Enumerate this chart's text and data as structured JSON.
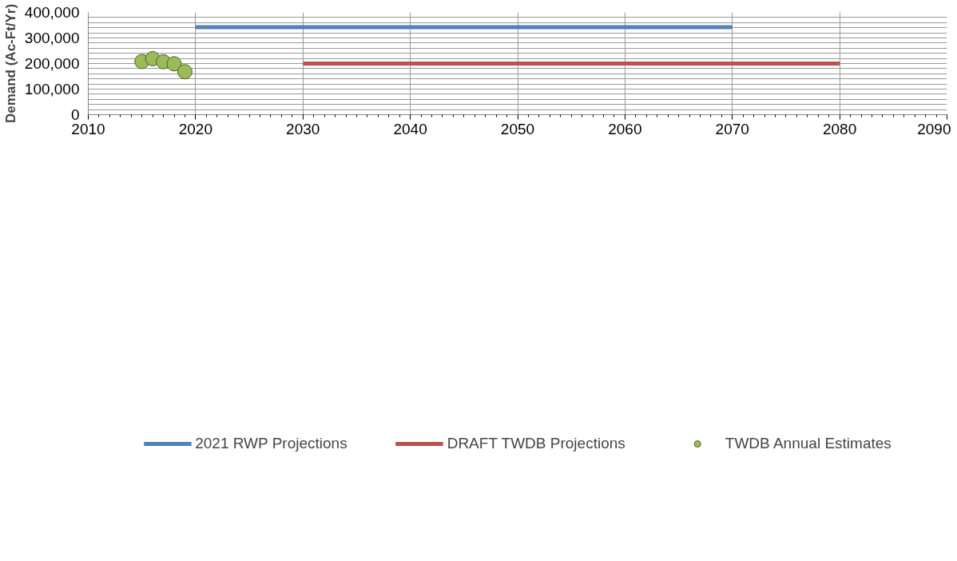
{
  "chart_data": {
    "type": "line",
    "ylabel": "Demand (Ac-Ft/Yr)",
    "xlim": [
      2010,
      2090
    ],
    "xticks": [
      2010,
      2020,
      2030,
      2040,
      2050,
      2060,
      2070,
      2080,
      2090
    ],
    "ylim": [
      0,
      400000
    ],
    "yticks": [
      {
        "value": 0,
        "label": "0"
      },
      {
        "value": 20000,
        "label": null
      },
      {
        "value": 40000,
        "label": null
      },
      {
        "value": 60000,
        "label": null
      },
      {
        "value": 80000,
        "label": null
      },
      {
        "value": 100000,
        "label": "100,000"
      },
      {
        "value": 120000,
        "label": null
      },
      {
        "value": 140000,
        "label": null
      },
      {
        "value": 160000,
        "label": null
      },
      {
        "value": 180000,
        "label": null
      },
      {
        "value": 200000,
        "label": "200,000"
      },
      {
        "value": 220000,
        "label": null
      },
      {
        "value": 240000,
        "label": null
      },
      {
        "value": 260000,
        "label": null
      },
      {
        "value": 280000,
        "label": null
      },
      {
        "value": 300000,
        "label": "300,000"
      },
      {
        "value": 320000,
        "label": null
      },
      {
        "value": 340000,
        "label": null
      },
      {
        "value": 360000,
        "label": null
      },
      {
        "value": 380000,
        "label": null
      },
      {
        "value": 400000,
        "label": "400,000"
      }
    ],
    "grid": true,
    "legend": "bottom",
    "series": [
      {
        "name": "2021 RWP Projections",
        "color": "#4f81bd",
        "marker": "none",
        "x": [
          2020,
          2070
        ],
        "values": [
          342000,
          342000
        ]
      },
      {
        "name": "DRAFT TWDB Projections",
        "color": "#c0504d",
        "marker": "none",
        "x": [
          2030,
          2080
        ],
        "values": [
          200000,
          200000
        ]
      },
      {
        "name": "TWDB Annual Estimates",
        "color": "#9bbb59",
        "type": "scatter",
        "marker": "circle",
        "x": [
          2015,
          2016,
          2017,
          2018,
          2019
        ],
        "values": [
          208000,
          219000,
          207000,
          199000,
          168000
        ]
      }
    ]
  }
}
